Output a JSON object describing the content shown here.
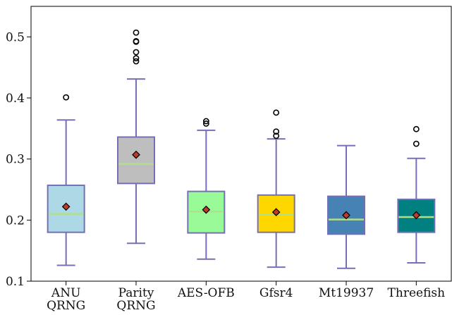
{
  "chart_data": {
    "type": "box",
    "title": "",
    "xlabel": "",
    "ylabel": "",
    "ylim": [
      0.1,
      0.55
    ],
    "yticks": [
      0.1,
      0.2,
      0.3,
      0.4,
      0.5
    ],
    "ytick_labels": [
      "0.1",
      "0.2",
      "0.3",
      "0.4",
      "0.5"
    ],
    "grid": false,
    "colors": {
      "whisker": "#7570b3",
      "median": "#b2df8a",
      "mean_marker": "#c0392b"
    },
    "boxes": [
      {
        "label_lines": [
          "ANU",
          "QRNG"
        ],
        "fill": "#add8e6",
        "whislo": 0.126,
        "q1": 0.18,
        "median": 0.21,
        "q3": 0.257,
        "whishi": 0.364,
        "mean": 0.222,
        "fliers": [
          0.401
        ]
      },
      {
        "label_lines": [
          "Parity",
          "QRNG"
        ],
        "fill": "#bebebe",
        "whislo": 0.162,
        "q1": 0.26,
        "median": 0.292,
        "q3": 0.336,
        "whishi": 0.431,
        "mean": 0.307,
        "fliers": [
          0.46,
          0.465,
          0.475,
          0.492,
          0.493,
          0.507
        ]
      },
      {
        "label_lines": [
          "AES-OFB"
        ],
        "fill": "#98fb98",
        "whislo": 0.136,
        "q1": 0.179,
        "median": 0.214,
        "q3": 0.247,
        "whishi": 0.347,
        "mean": 0.217,
        "fliers": [
          0.358,
          0.362
        ]
      },
      {
        "label_lines": [
          "Gfsr4"
        ],
        "fill": "#ffd700",
        "whislo": 0.123,
        "q1": 0.18,
        "median": 0.209,
        "q3": 0.241,
        "whishi": 0.333,
        "mean": 0.213,
        "fliers": [
          0.338,
          0.345,
          0.376
        ]
      },
      {
        "label_lines": [
          "Mt19937"
        ],
        "fill": "#4682b4",
        "whislo": 0.121,
        "q1": 0.177,
        "median": 0.201,
        "q3": 0.239,
        "whishi": 0.322,
        "mean": 0.208,
        "fliers": []
      },
      {
        "label_lines": [
          "Threefish"
        ],
        "fill": "#008080",
        "whislo": 0.13,
        "q1": 0.18,
        "median": 0.205,
        "q3": 0.234,
        "whishi": 0.301,
        "mean": 0.208,
        "fliers": [
          0.325,
          0.349
        ]
      }
    ]
  }
}
